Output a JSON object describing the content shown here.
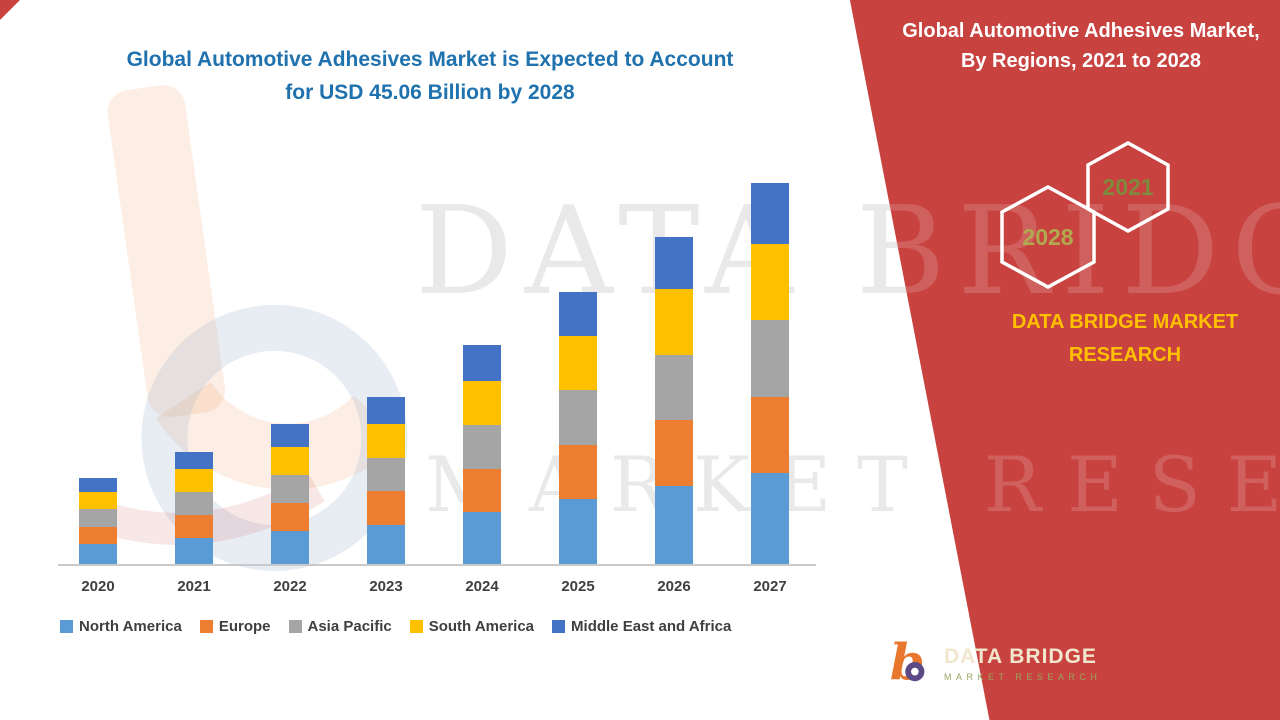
{
  "title": {
    "line1": "Global Automotive Adhesives Market is Expected to Account",
    "line2": "for USD 45.06 Billion by 2028"
  },
  "watermark": {
    "line1": "DATA BRIDGE",
    "line2": "MARKET RESEARCH"
  },
  "side_panel": {
    "heading": "Global Automotive Adhesives Market, By Regions, 2021 to 2028",
    "hex_left_year": "2028",
    "hex_right_year": "2021",
    "brand_line1": "DATA BRIDGE MARKET",
    "brand_line2": "RESEARCH",
    "logo_name": "DATA BRIDGE",
    "logo_tagline": "MARKET RESEARCH",
    "panel_color": "#C8423F",
    "brand_text_color": "#FFC000",
    "hex_year_color_2028": "#B1A94E",
    "hex_year_color_2021": "#7E8A3E"
  },
  "chart_data": {
    "type": "bar",
    "stacked": true,
    "title": "Global Automotive Adhesives Market is Expected to Account for USD 45.06 Billion by 2028",
    "categories": [
      "2020",
      "2021",
      "2022",
      "2023",
      "2024",
      "2025",
      "2026",
      "2027"
    ],
    "series": [
      {
        "name": "North America",
        "color": "#5B9BD5",
        "values": [
          2.3,
          3.0,
          3.7,
          4.4,
          5.8,
          7.2,
          8.7,
          10.1
        ]
      },
      {
        "name": "Europe",
        "color": "#ED7D31",
        "values": [
          1.9,
          2.5,
          3.1,
          3.7,
          4.8,
          6.0,
          7.2,
          8.4
        ]
      },
      {
        "name": "Asia Pacific",
        "color": "#A5A5A5",
        "values": [
          1.9,
          2.5,
          3.1,
          3.7,
          4.8,
          6.0,
          7.2,
          8.4
        ]
      },
      {
        "name": "South America",
        "color": "#FFC000",
        "values": [
          1.9,
          2.5,
          3.1,
          3.7,
          4.8,
          6.0,
          7.2,
          8.4
        ]
      },
      {
        "name": "Middle East and Africa",
        "color": "#4472C4",
        "values": [
          1.6,
          1.9,
          2.5,
          3.0,
          4.0,
          4.8,
          5.8,
          6.7
        ]
      }
    ],
    "totals_estimated": [
      9.6,
      12.4,
      15.5,
      18.5,
      24.2,
      30.0,
      36.1,
      42.0
    ],
    "xlabel": "",
    "ylabel": "",
    "ylim": [
      0,
      46
    ],
    "y_axis_labels_visible": false,
    "grid": false,
    "legend_position": "bottom"
  }
}
